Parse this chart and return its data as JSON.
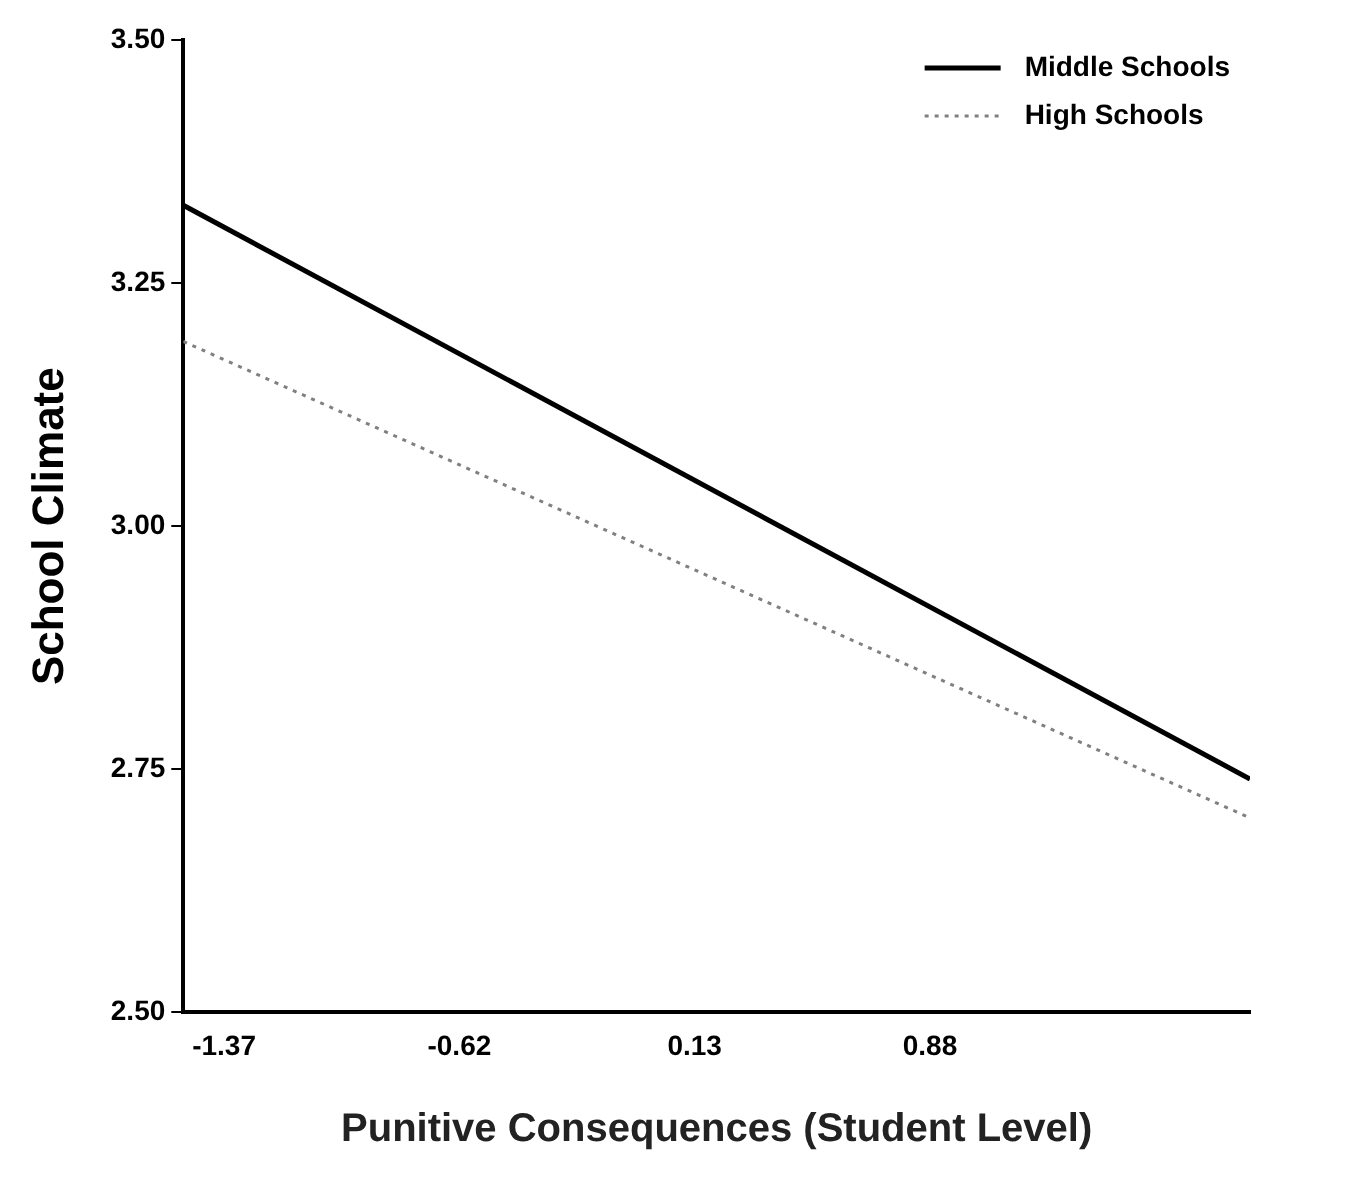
{
  "chart_data": {
    "type": "line",
    "xlabel": "Punitive Consequences (Student Level)",
    "ylabel": "School Climate",
    "x": [
      -1.5,
      1.9
    ],
    "series": [
      {
        "name": "Middle Schools",
        "color": "#000000",
        "values": [
          3.33,
          2.74
        ],
        "line_style": "solid"
      },
      {
        "name": "High Schools",
        "color": "#808080",
        "values": [
          3.19,
          2.7
        ],
        "line_style": "dotted"
      }
    ],
    "xlim": [
      -1.5,
      1.9
    ],
    "xticks": [
      -1.37,
      -0.62,
      0.13,
      0.88
    ],
    "ylim": [
      2.5,
      3.5
    ],
    "yticks": [
      {
        "value": 2.5,
        "label": "2.50"
      },
      {
        "value": 2.75,
        "label": "2.75"
      },
      {
        "value": 3,
        "label": "3.00"
      },
      {
        "value": 3.25,
        "label": "3.25"
      },
      {
        "value": 3.5,
        "label": "3.50"
      }
    ],
    "grid": false,
    "legend": "top right",
    "marker": "none"
  }
}
